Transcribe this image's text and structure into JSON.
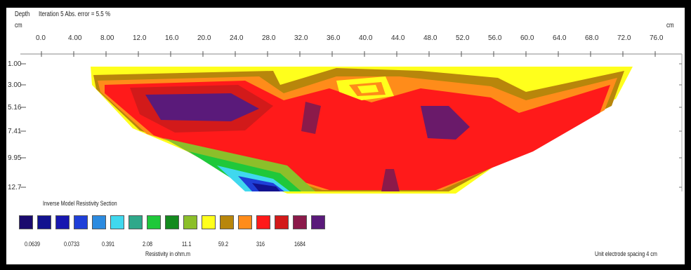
{
  "header": {
    "depth_label": "Depth",
    "iteration_text": "Iteration 5 Abs. error = 5.5 %",
    "unit_label": "cm",
    "unit_right": "cm"
  },
  "distance_ticks": [
    "0.0",
    "4.00",
    "8.00",
    "12.0",
    "16.0",
    "20.0",
    "24.0",
    "28.0",
    "32.0",
    "36.0",
    "40.0",
    "44.0",
    "48.0",
    "52.0",
    "56.0",
    "60.0",
    "64.0",
    "68.0",
    "72.0",
    "76.0"
  ],
  "depth_ticks": [
    "1.00",
    "3.00",
    "5.16",
    "7.41",
    "9.95",
    "12.7"
  ],
  "legend": {
    "title": "Inverse Model Resistivity Section",
    "colors": [
      "#1a0a6e",
      "#12128f",
      "#1818b0",
      "#1f3fd8",
      "#2c8be0",
      "#40d8ee",
      "#2fa88a",
      "#1fc83a",
      "#138a1e",
      "#8cbf2a",
      "#ffff1c",
      "#b8860b",
      "#ff8c1a",
      "#ff1a1a",
      "#d21a1a",
      "#8b1a4a",
      "#5a1a7a"
    ],
    "value_labels": [
      "0.0639",
      "0.0733",
      "0.391",
      "2.08",
      "11.1",
      "59.2",
      "316",
      "1684"
    ],
    "xlabel": "Resistivity in ohm.m"
  },
  "footer": {
    "spacing": "Unit electrode spacing 4 cm"
  },
  "section_colors": {
    "yellow": "#ffff1c",
    "orange": "#ff8c1a",
    "dark_orange": "#b8860b",
    "red": "#ff1a1a",
    "dark_red": "#d21a1a",
    "purple": "#5a1a7a",
    "green_yellow": "#8cbf2a",
    "green": "#1fc83a",
    "cyan": "#40d8ee",
    "blue": "#1f3fd8",
    "dark_blue": "#12128f"
  }
}
